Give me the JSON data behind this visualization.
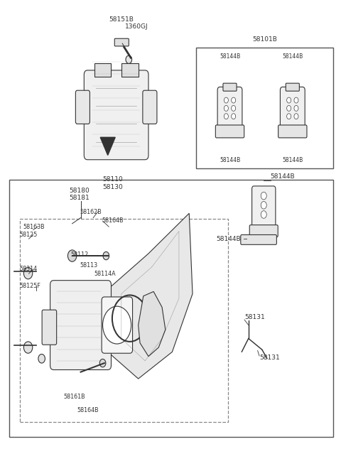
{
  "bg_color": "#ffffff",
  "line_color": "#333333",
  "fig_width": 4.8,
  "fig_height": 6.32,
  "dpi": 100,
  "labels": {
    "bolt1": "58151B",
    "bolt2": "1360GJ",
    "caliper1": "58110",
    "caliper2": "58130",
    "pad_box_main": "58101B",
    "pad_labels": [
      "58144B",
      "58144B",
      "58144B",
      "58144B"
    ],
    "bottom_left": [
      "58163B",
      "58125",
      "58314",
      "58125F"
    ],
    "bottom_center": [
      "58180",
      "58181",
      "58162B",
      "58164B",
      "58112",
      "58113",
      "58114A"
    ],
    "bottom_lower": [
      "58161B",
      "58164B"
    ],
    "clip_labels": [
      "58131",
      "58131"
    ]
  }
}
